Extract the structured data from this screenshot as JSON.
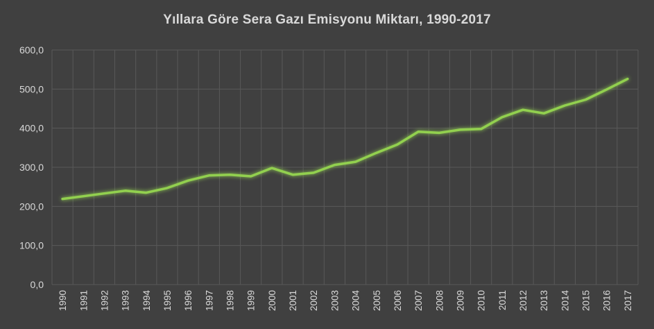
{
  "chart_data": {
    "type": "line",
    "title": "Yıllara Göre Sera Gazı Emisyonu Miktarı, 1990-2017",
    "xlabel": "",
    "ylabel": "",
    "ylim": [
      0,
      600
    ],
    "yticks": [
      "0,0",
      "100,0",
      "200,0",
      "300,0",
      "400,0",
      "500,0",
      "600,0"
    ],
    "grid": true,
    "legend": "none",
    "categories": [
      "1990",
      "1991",
      "1992",
      "1993",
      "1994",
      "1995",
      "1996",
      "1997",
      "1998",
      "1999",
      "2000",
      "2001",
      "2002",
      "2003",
      "2004",
      "2005",
      "2006",
      "2007",
      "2008",
      "2009",
      "2010",
      "2011",
      "2012",
      "2013",
      "2014",
      "2015",
      "2016",
      "2017"
    ],
    "series": [
      {
        "values": [
          219,
          226,
          233,
          240,
          235,
          247,
          266,
          279,
          281,
          277,
          298,
          281,
          286,
          306,
          314,
          337,
          358,
          391,
          388,
          396,
          398,
          428,
          447,
          438,
          458,
          473,
          499,
          526
        ],
        "color": "#92d050"
      }
    ]
  }
}
